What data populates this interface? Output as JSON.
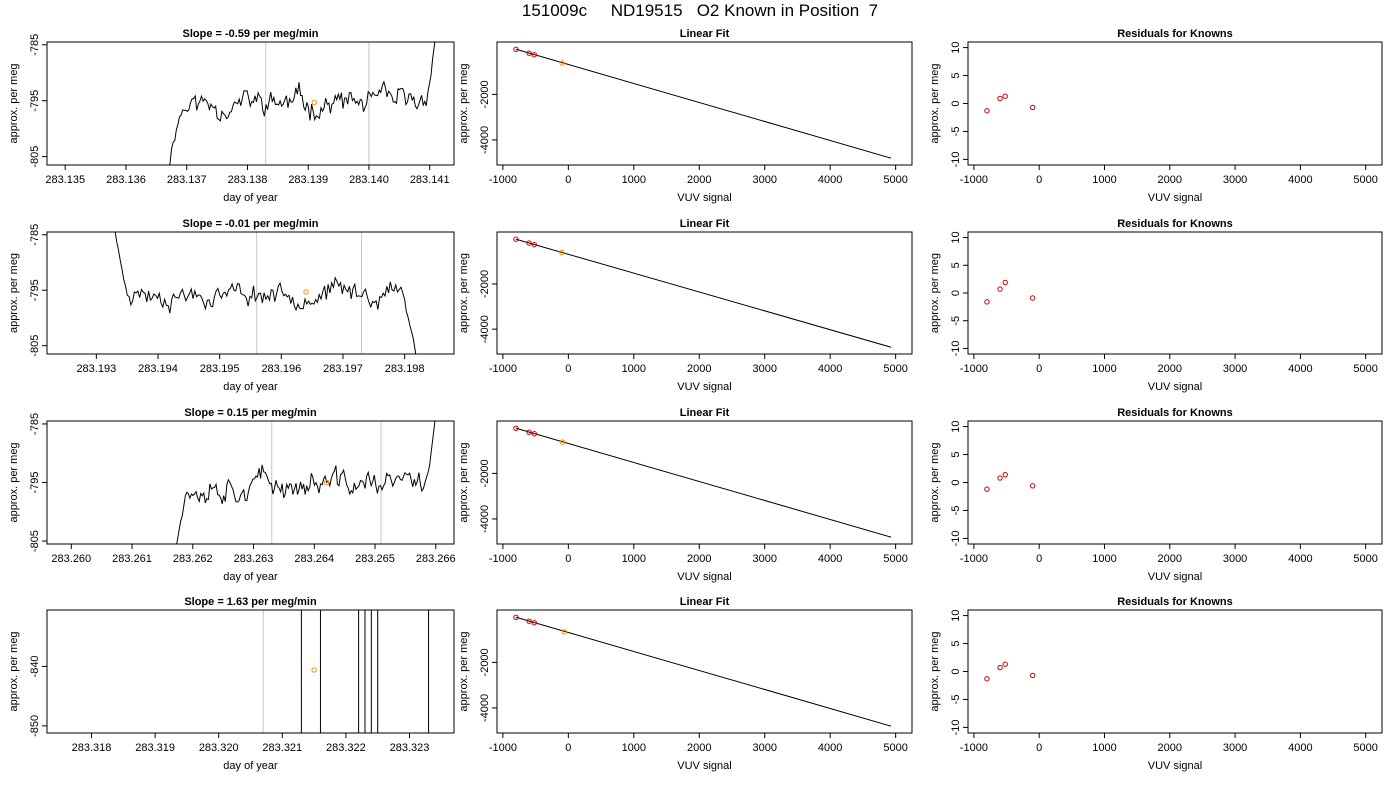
{
  "title": "151009c     ND19515   O2 Known in Position  7",
  "colors": {
    "trace": "#000000",
    "vline": "#c8c8c8",
    "known": "#cc0000",
    "sample": "#ff8c00",
    "frame": "#000000"
  },
  "chart_data": [
    {
      "type": "line",
      "panel": "timeseries",
      "row": 1,
      "title": "Slope =  -0.59  per meg/min",
      "xlabel": "day of year",
      "ylabel": "approx. per meg",
      "xlim": [
        283.1347,
        283.1414
      ],
      "ylim": [
        -806.5,
        -784.5
      ],
      "xticks": [
        "283.135",
        "283.136",
        "283.137",
        "283.138",
        "283.139",
        "283.140",
        "283.141"
      ],
      "yticks": [
        "-785",
        "-795",
        "-805"
      ],
      "trace": {
        "start": 283.1367,
        "end": 283.1411,
        "start_value": -808,
        "level": -795.5,
        "noise": 1.8,
        "end_value": -783,
        "seed": 11
      },
      "vlines": [
        283.1383,
        283.14
      ],
      "sample_point": {
        "x": 283.1391,
        "y": -795.3
      }
    },
    {
      "type": "scatter",
      "panel": "fit",
      "row": 1,
      "title": "Linear Fit",
      "xlabel": "VUV signal",
      "ylabel": "approx. per meg",
      "xlim": [
        -1090,
        5250
      ],
      "ylim": [
        -5100,
        300
      ],
      "xticks": [
        "-1000",
        "0",
        "1000",
        "2000",
        "3000",
        "4000",
        "5000"
      ],
      "yticks": [
        "-2000",
        "-4000"
      ],
      "fit_line": {
        "x": [
          -800,
          4930
        ],
        "y": [
          -20,
          -4800
        ]
      },
      "knowns": [
        {
          "x": -800,
          "y": -20
        },
        {
          "x": -600,
          "y": -190
        },
        {
          "x": -520,
          "y": -260
        }
      ],
      "sample": {
        "x": -95,
        "y": -620
      }
    },
    {
      "type": "scatter",
      "panel": "residuals",
      "row": 1,
      "title": "Residuals for Knowns",
      "xlabel": "VUV signal",
      "ylabel": "approx. per meg",
      "xlim": [
        -1090,
        5250
      ],
      "ylim": [
        -11,
        11
      ],
      "xticks": [
        "-1000",
        "0",
        "1000",
        "2000",
        "3000",
        "4000",
        "5000"
      ],
      "yticks": [
        "-10",
        "-5",
        "0",
        "5",
        "10"
      ],
      "points": [
        {
          "x": -800,
          "y": -1.3
        },
        {
          "x": -600,
          "y": 0.9
        },
        {
          "x": -520,
          "y": 1.3
        },
        {
          "x": -100,
          "y": -0.7
        }
      ]
    },
    {
      "type": "line",
      "panel": "timeseries",
      "row": 2,
      "title": "Slope =  -0.01  per meg/min",
      "xlabel": "day of year",
      "ylabel": "approx. per meg",
      "xlim": [
        283.1922,
        283.1988
      ],
      "ylim": [
        -806.5,
        -784.5
      ],
      "xticks": [
        "283.193",
        "283.194",
        "283.195",
        "283.196",
        "283.197",
        "283.198"
      ],
      "yticks": [
        "-785",
        "-795",
        "-805"
      ],
      "trace": {
        "start": 283.1933,
        "end": 283.1982,
        "start_value": -784,
        "level": -795.5,
        "noise": 1.6,
        "end_value": -808,
        "seed": 23
      },
      "vlines": [
        283.1956,
        283.1973
      ],
      "sample_point": {
        "x": 283.1964,
        "y": -795.3
      }
    },
    {
      "type": "scatter",
      "panel": "fit",
      "row": 2,
      "title": "Linear Fit",
      "xlabel": "VUV signal",
      "ylabel": "approx. per meg",
      "xlim": [
        -1090,
        5250
      ],
      "ylim": [
        -5100,
        300
      ],
      "xticks": [
        "-1000",
        "0",
        "1000",
        "2000",
        "3000",
        "4000",
        "5000"
      ],
      "yticks": [
        "-2000",
        "-4000"
      ],
      "fit_line": {
        "x": [
          -800,
          4930
        ],
        "y": [
          -20,
          -4800
        ]
      },
      "knowns": [
        {
          "x": -800,
          "y": -20
        },
        {
          "x": -600,
          "y": -190
        },
        {
          "x": -520,
          "y": -260
        }
      ],
      "sample": {
        "x": -100,
        "y": -610
      }
    },
    {
      "type": "scatter",
      "panel": "residuals",
      "row": 2,
      "title": "Residuals for Knowns",
      "xlabel": "VUV signal",
      "ylabel": "approx. per meg",
      "xlim": [
        -1090,
        5250
      ],
      "ylim": [
        -11,
        11
      ],
      "xticks": [
        "-1000",
        "0",
        "1000",
        "2000",
        "3000",
        "4000",
        "5000"
      ],
      "yticks": [
        "-10",
        "-5",
        "0",
        "5",
        "10"
      ],
      "points": [
        {
          "x": -800,
          "y": -1.6
        },
        {
          "x": -600,
          "y": 0.7
        },
        {
          "x": -520,
          "y": 1.9
        },
        {
          "x": -100,
          "y": -0.9
        }
      ]
    },
    {
      "type": "line",
      "panel": "timeseries",
      "row": 3,
      "title": "Slope =  0.15  per meg/min",
      "xlabel": "day of year",
      "ylabel": "approx. per meg",
      "xlim": [
        283.2596,
        283.2663
      ],
      "ylim": [
        -805.5,
        -784.5
      ],
      "xticks": [
        "283.260",
        "283.261",
        "283.262",
        "283.263",
        "283.264",
        "283.265",
        "283.266"
      ],
      "yticks": [
        "-785",
        "-795",
        "-805"
      ],
      "trace": {
        "start": 283.2617,
        "end": 283.266,
        "start_value": -808,
        "level": -795.3,
        "noise": 1.8,
        "end_value": -783,
        "seed": 37
      },
      "vlines": [
        283.2633,
        283.2651
      ],
      "sample_point": {
        "x": 283.2642,
        "y": -795.0
      }
    },
    {
      "type": "scatter",
      "panel": "fit",
      "row": 3,
      "title": "Linear Fit",
      "xlabel": "VUV signal",
      "ylabel": "approx. per meg",
      "xlim": [
        -1090,
        5250
      ],
      "ylim": [
        -5100,
        300
      ],
      "xticks": [
        "-1000",
        "0",
        "1000",
        "2000",
        "3000",
        "4000",
        "5000"
      ],
      "yticks": [
        "-2000",
        "-4000"
      ],
      "fit_line": {
        "x": [
          -800,
          4930
        ],
        "y": [
          -20,
          -4800
        ]
      },
      "knowns": [
        {
          "x": -800,
          "y": -20
        },
        {
          "x": -600,
          "y": -190
        },
        {
          "x": -520,
          "y": -260
        }
      ],
      "sample": {
        "x": -90,
        "y": -625
      }
    },
    {
      "type": "scatter",
      "panel": "residuals",
      "row": 3,
      "title": "Residuals for Knowns",
      "xlabel": "VUV signal",
      "ylabel": "approx. per meg",
      "xlim": [
        -1090,
        5250
      ],
      "ylim": [
        -11,
        11
      ],
      "xticks": [
        "-1000",
        "0",
        "1000",
        "2000",
        "3000",
        "4000",
        "5000"
      ],
      "yticks": [
        "-10",
        "-5",
        "0",
        "5",
        "10"
      ],
      "points": [
        {
          "x": -800,
          "y": -1.2
        },
        {
          "x": -600,
          "y": 0.8
        },
        {
          "x": -520,
          "y": 1.4
        },
        {
          "x": -100,
          "y": -0.6
        }
      ]
    },
    {
      "type": "line",
      "panel": "timeseries",
      "row": 4,
      "title": "Slope =  1.63  per meg/min",
      "xlabel": "day of year",
      "ylabel": "approx. per meg",
      "xlim": [
        283.3173,
        283.3237
      ],
      "ylim": [
        -851.2,
        -830.5
      ],
      "xticks": [
        "283.318",
        "283.319",
        "283.320",
        "283.321",
        "283.322",
        "283.323"
      ],
      "yticks": [
        "-840",
        "-850"
      ],
      "spikes": [
        283.3213,
        283.3216,
        283.3222,
        283.3223,
        283.3224,
        283.3225,
        283.3233
      ],
      "vlines": [
        283.3207,
        283.3233
      ],
      "sample_point": {
        "x": 283.3215,
        "y": -840.6
      }
    },
    {
      "type": "scatter",
      "panel": "fit",
      "row": 4,
      "title": "Linear Fit",
      "xlabel": "VUV signal",
      "ylabel": "approx. per meg",
      "xlim": [
        -1090,
        5250
      ],
      "ylim": [
        -5100,
        300
      ],
      "xticks": [
        "-1000",
        "0",
        "1000",
        "2000",
        "3000",
        "4000",
        "5000"
      ],
      "yticks": [
        "-2000",
        "-4000"
      ],
      "fit_line": {
        "x": [
          -800,
          4930
        ],
        "y": [
          -20,
          -4800
        ]
      },
      "knowns": [
        {
          "x": -800,
          "y": -20
        },
        {
          "x": -600,
          "y": -190
        },
        {
          "x": -520,
          "y": -260
        }
      ],
      "sample": {
        "x": -60,
        "y": -660
      }
    },
    {
      "type": "scatter",
      "panel": "residuals",
      "row": 4,
      "title": "Residuals for Knowns",
      "xlabel": "VUV signal",
      "ylabel": "approx. per meg",
      "xlim": [
        -1090,
        5250
      ],
      "ylim": [
        -11,
        11
      ],
      "xticks": [
        "-1000",
        "0",
        "1000",
        "2000",
        "3000",
        "4000",
        "5000"
      ],
      "yticks": [
        "-10",
        "-5",
        "0",
        "5",
        "10"
      ],
      "points": [
        {
          "x": -800,
          "y": -1.3
        },
        {
          "x": -600,
          "y": 0.7
        },
        {
          "x": -520,
          "y": 1.3
        },
        {
          "x": -100,
          "y": -0.7
        }
      ]
    }
  ]
}
